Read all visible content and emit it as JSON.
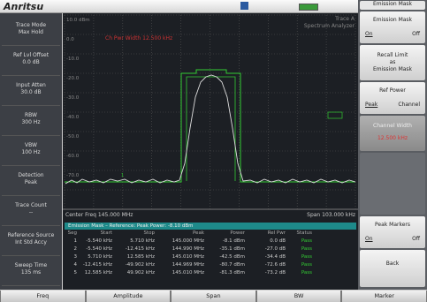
{
  "header": {
    "logo": "Anritsu",
    "menu_title": "Emission Mask"
  },
  "left_panel": [
    {
      "label": "Trace Mode",
      "value": "Max Hold"
    },
    {
      "label": "Ref Lvl Offset",
      "value": "0.0 dB"
    },
    {
      "label": "Input Atten",
      "value": "30.0 dB"
    },
    {
      "label": "RBW",
      "value": "300 Hz"
    },
    {
      "label": "VBW",
      "value": "100 Hz"
    },
    {
      "label": "Detection",
      "value": "Peak"
    },
    {
      "label": "Trace Count",
      "value": "--"
    },
    {
      "label": "Reference Source",
      "value": "Int Std Accy"
    },
    {
      "label": "Sweep Time",
      "value": "135 ms"
    }
  ],
  "plot": {
    "trace_label": "Trace A",
    "mode": "Spectrum Analyzer",
    "y_labels": [
      "10.0 dBm",
      "0.0",
      "-10.0",
      "-20.0",
      "-30.0",
      "-40.0",
      "-50.0",
      "-60.0",
      "-70.0"
    ],
    "annotation": "Ch Pwr Width 12.500 kHz",
    "marker": "1",
    "center": "Center Freq 145.000 MHz",
    "span": "Span 103.000 kHz"
  },
  "table": {
    "title": "Emission Mask – Reference: Peak Power: -8.10 dBm",
    "columns": [
      "Seg",
      "Start",
      "Stop",
      "Peak",
      "Power",
      "Rel Pwr",
      "Status"
    ],
    "rows": [
      [
        "1",
        "-5.540 kHz",
        "5.710 kHz",
        "145.000 MHz",
        "-8.1 dBm",
        "0.0 dB",
        "Pass"
      ],
      [
        "2",
        "-5.540 kHz",
        "-12.415 kHz",
        "144.990 MHz",
        "-35.1 dBm",
        "-27.0 dB",
        "Pass"
      ],
      [
        "3",
        "5.710 kHz",
        "12.585 kHz",
        "145.010 MHz",
        "-42.5 dBm",
        "-34.4 dB",
        "Pass"
      ],
      [
        "4",
        "-12.415 kHz",
        "-49.902 kHz",
        "144.969 MHz",
        "-80.7 dBm",
        "-72.6 dB",
        "Pass"
      ],
      [
        "5",
        "12.585 kHz",
        "49.902 kHz",
        "145.010 MHz",
        "-81.3 dBm",
        "-73.2 dB",
        "Pass"
      ]
    ]
  },
  "right_panel": {
    "emission_mask": {
      "label": "Emission Mask",
      "on": "On",
      "off": "Off"
    },
    "recall": [
      "Recall Limit",
      "as",
      "Emission Mask"
    ],
    "ref_power": {
      "label": "Ref Power",
      "peak": "Peak",
      "channel": "Channel"
    },
    "channel_width": {
      "label": "Channel Width",
      "value": "12.500 kHz"
    },
    "peak_markers": {
      "label": "Peak Markers",
      "on": "On",
      "off": "Off"
    },
    "back": "Back"
  },
  "tabs": [
    "Freq",
    "Amplitude",
    "Span",
    "BW",
    "Marker"
  ]
}
